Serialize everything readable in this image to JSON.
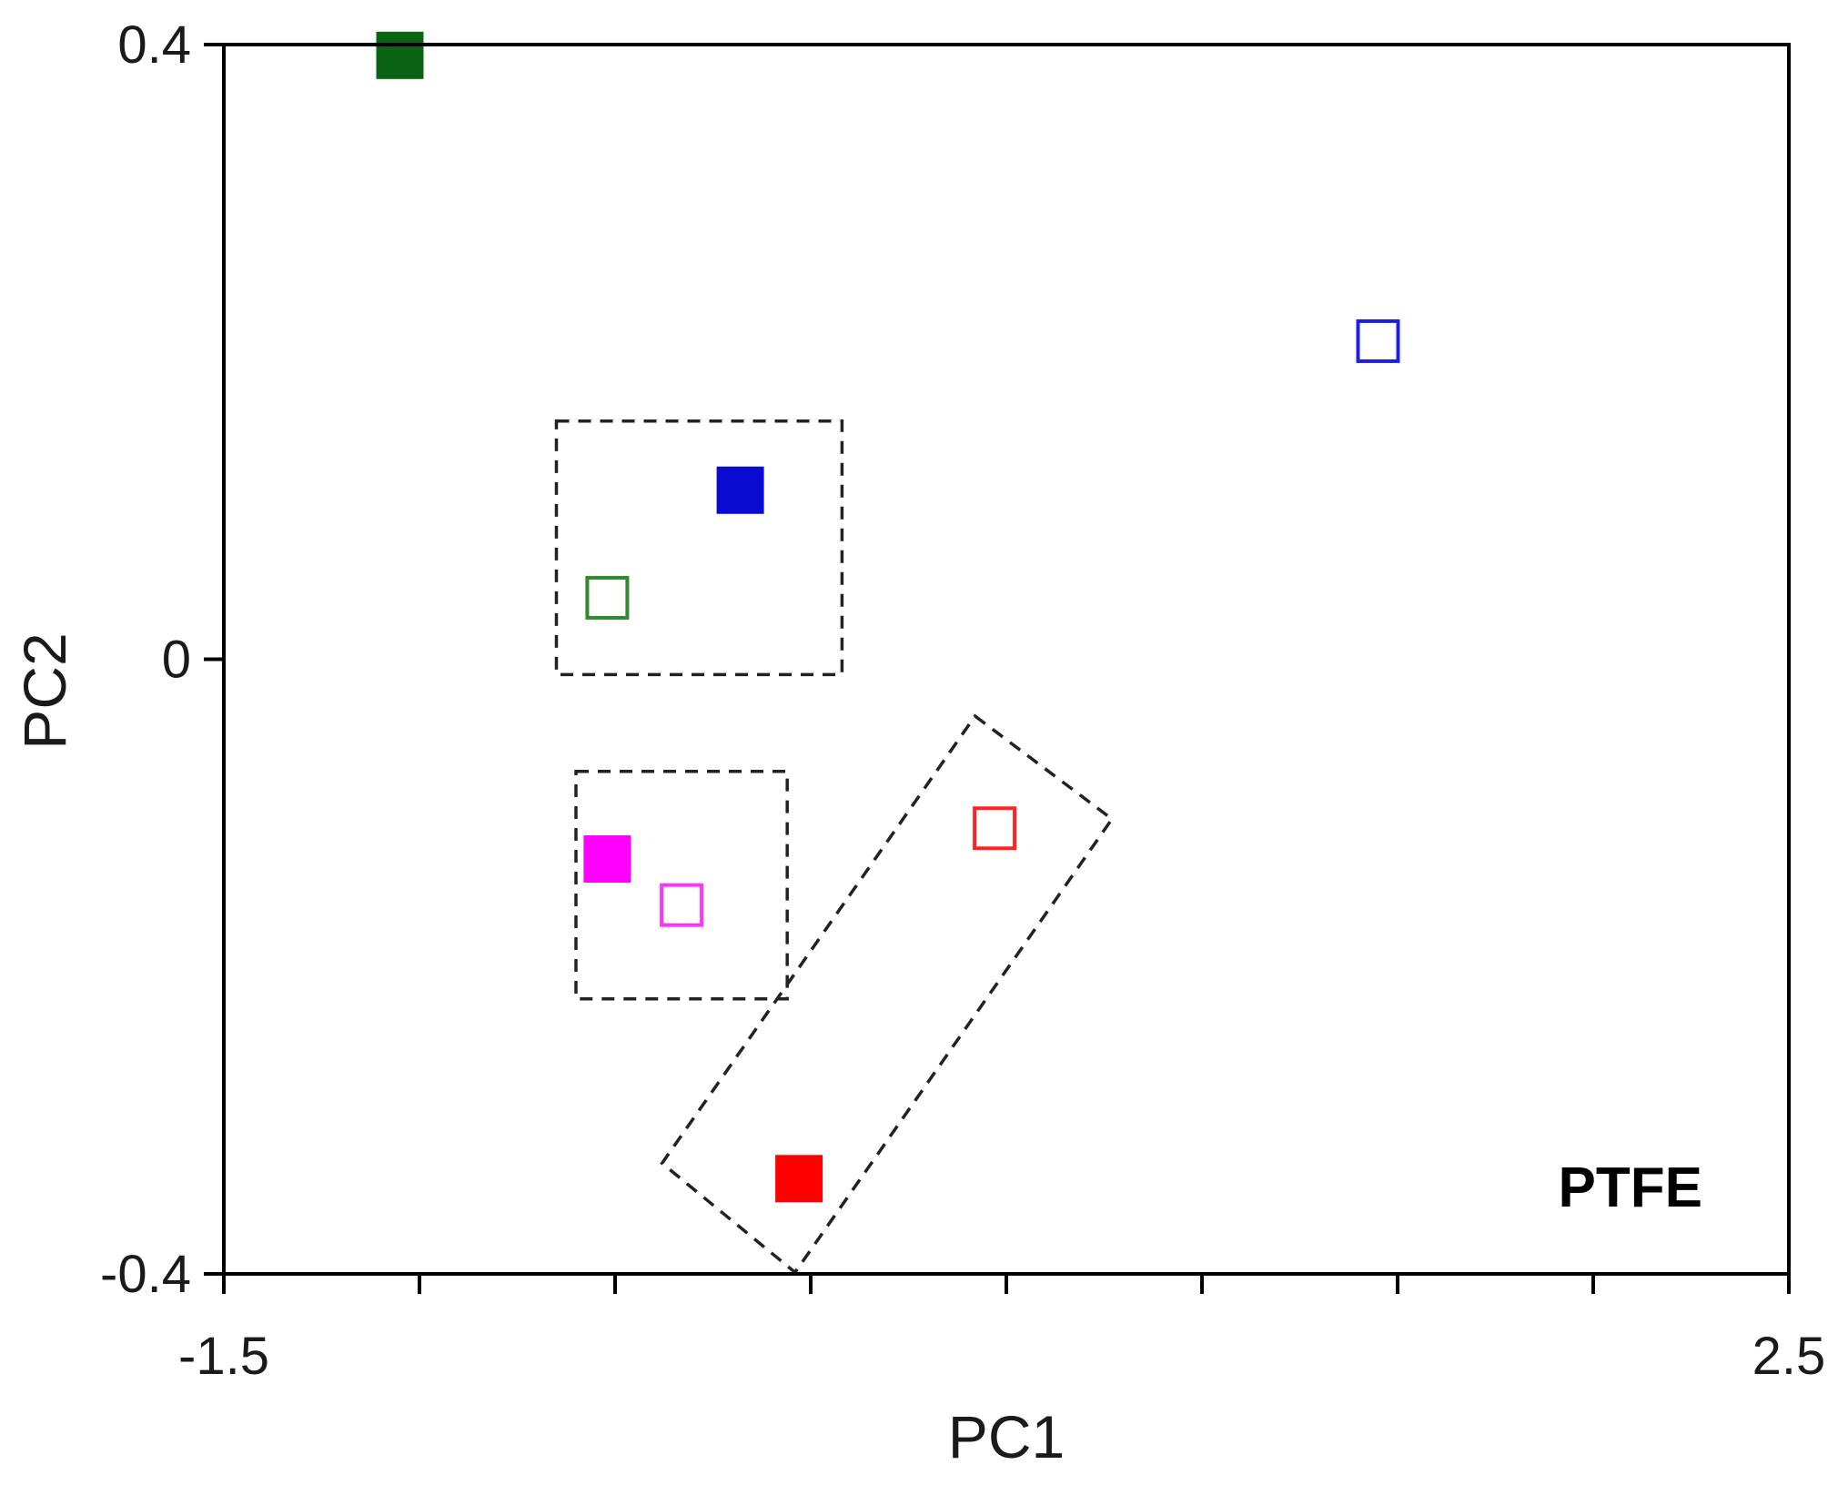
{
  "chart_data": {
    "type": "scatter",
    "xlabel": "PC1",
    "ylabel": "PC2",
    "xlim": [
      -1.5,
      2.5
    ],
    "ylim": [
      -0.4,
      0.4
    ],
    "x_tick_labels": [
      {
        "value": -1.5,
        "label": "-1.5"
      },
      {
        "value": 2.5,
        "label": "2.5"
      }
    ],
    "y_tick_labels": [
      {
        "value": 0.4,
        "label": "0.4"
      },
      {
        "value": 0,
        "label": "0"
      },
      {
        "value": -0.4,
        "label": "-0.4"
      }
    ],
    "x_minor_ticks": [
      -1.5,
      -1.0,
      -0.5,
      0.0,
      0.5,
      1.0,
      1.5,
      2.0,
      2.5
    ],
    "annotation": "PTFE",
    "annotation_position": "bottom-right",
    "grid": false,
    "points": [
      {
        "x": -1.05,
        "y": 0.393,
        "color": "#0b6414",
        "filled": true
      },
      {
        "x": 1.45,
        "y": 0.207,
        "color": "#1f1fe0",
        "filled": false
      },
      {
        "x": -0.18,
        "y": 0.11,
        "color": "#0a0ad0",
        "filled": true
      },
      {
        "x": -0.52,
        "y": 0.04,
        "color": "#2e8b2e",
        "filled": false
      },
      {
        "x": -0.52,
        "y": -0.13,
        "color": "#ff00ff",
        "filled": true
      },
      {
        "x": -0.33,
        "y": -0.16,
        "color": "#ff33ff",
        "filled": false
      },
      {
        "x": 0.47,
        "y": -0.11,
        "color": "#ff2222",
        "filled": false
      },
      {
        "x": -0.03,
        "y": -0.338,
        "color": "#ff0000",
        "filled": true
      }
    ],
    "cluster_boxes": [
      {
        "corners": [
          [
            -0.65,
            0.155
          ],
          [
            0.08,
            0.155
          ],
          [
            0.08,
            -0.01
          ],
          [
            -0.65,
            -0.01
          ]
        ]
      },
      {
        "corners": [
          [
            -0.6,
            -0.073
          ],
          [
            -0.06,
            -0.073
          ],
          [
            -0.06,
            -0.221
          ],
          [
            -0.6,
            -0.221
          ]
        ]
      },
      {
        "corners": [
          [
            0.42,
            -0.037
          ],
          [
            0.77,
            -0.104
          ],
          [
            -0.04,
            -0.399
          ],
          [
            -0.38,
            -0.328
          ]
        ]
      }
    ]
  }
}
